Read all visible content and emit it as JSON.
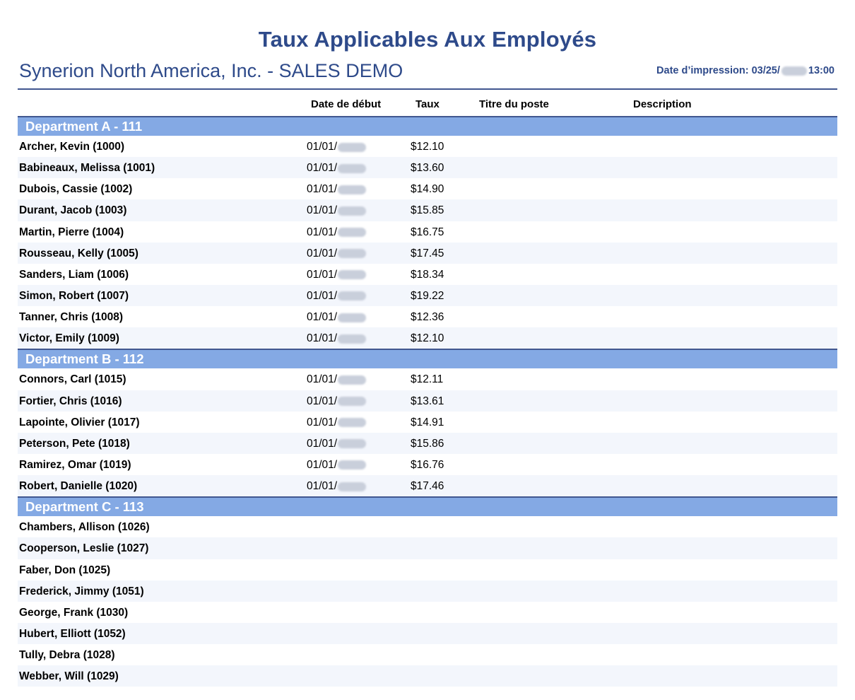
{
  "report": {
    "title": "Taux Applicables Aux Employés",
    "company": "Synerion North America, Inc. - SALES DEMO",
    "print_date_prefix": "Date d’impression: 03/25/",
    "print_time": "13:00"
  },
  "columns": {
    "start_date": "Date de début",
    "rate": "Taux",
    "job_title": "Titre du poste",
    "description": "Description"
  },
  "departments": [
    {
      "name": "Department A - 111",
      "employees": [
        {
          "name": "Archer, Kevin (1000)",
          "date": "01/01/",
          "rate": "$12.10"
        },
        {
          "name": "Babineaux, Melissa (1001)",
          "date": "01/01/",
          "rate": "$13.60"
        },
        {
          "name": "Dubois, Cassie (1002)",
          "date": "01/01/",
          "rate": "$14.90"
        },
        {
          "name": "Durant, Jacob (1003)",
          "date": "01/01/",
          "rate": "$15.85"
        },
        {
          "name": "Martin, Pierre (1004)",
          "date": "01/01/",
          "rate": "$16.75"
        },
        {
          "name": "Rousseau, Kelly (1005)",
          "date": "01/01/",
          "rate": "$17.45"
        },
        {
          "name": "Sanders, Liam (1006)",
          "date": "01/01/",
          "rate": "$18.34"
        },
        {
          "name": "Simon, Robert (1007)",
          "date": "01/01/",
          "rate": "$19.22"
        },
        {
          "name": "Tanner, Chris (1008)",
          "date": "01/01/",
          "rate": "$12.36"
        },
        {
          "name": "Victor, Emily (1009)",
          "date": "01/01/",
          "rate": "$12.10"
        }
      ]
    },
    {
      "name": "Department B - 112",
      "employees": [
        {
          "name": "Connors, Carl (1015)",
          "date": "01/01/",
          "rate": "$12.11"
        },
        {
          "name": "Fortier, Chris (1016)",
          "date": "01/01/",
          "rate": "$13.61"
        },
        {
          "name": "Lapointe, Olivier (1017)",
          "date": "01/01/",
          "rate": "$14.91"
        },
        {
          "name": "Peterson, Pete (1018)",
          "date": "01/01/",
          "rate": "$15.86"
        },
        {
          "name": "Ramirez, Omar (1019)",
          "date": "01/01/",
          "rate": "$16.76"
        },
        {
          "name": "Robert, Danielle (1020)",
          "date": "01/01/",
          "rate": "$17.46"
        }
      ]
    },
    {
      "name": "Department C - 113",
      "employees": [
        {
          "name": "Chambers, Allison (1026)",
          "date": "",
          "rate": ""
        },
        {
          "name": "Cooperson, Leslie (1027)",
          "date": "",
          "rate": ""
        },
        {
          "name": "Faber, Don (1025)",
          "date": "",
          "rate": ""
        },
        {
          "name": "Frederick, Jimmy (1051)",
          "date": "",
          "rate": ""
        },
        {
          "name": "George, Frank (1030)",
          "date": "",
          "rate": ""
        },
        {
          "name": "Hubert, Elliott (1052)",
          "date": "",
          "rate": ""
        },
        {
          "name": "Tully, Debra (1028)",
          "date": "",
          "rate": ""
        },
        {
          "name": "Webber, Will (1029)",
          "date": "",
          "rate": ""
        }
      ]
    }
  ]
}
